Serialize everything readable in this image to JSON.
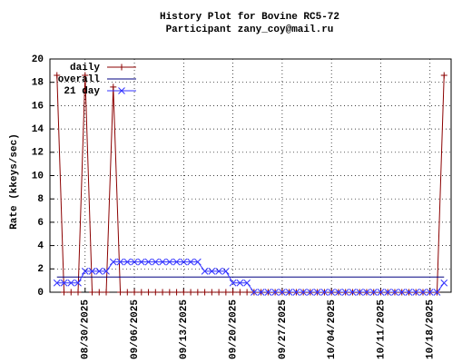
{
  "chart_data": {
    "type": "line",
    "title": "History Plot for Bovine RC5-72",
    "subtitle": "Participant zany_coy@mail.ru",
    "y_label": "Rate (kkeys/sec)",
    "x": [
      "08/26/2025",
      "08/27/2025",
      "08/28/2025",
      "08/29/2025",
      "08/30/2025",
      "08/31/2025",
      "09/01/2025",
      "09/02/2025",
      "09/03/2025",
      "09/04/2025",
      "09/05/2025",
      "09/06/2025",
      "09/07/2025",
      "09/08/2025",
      "09/09/2025",
      "09/10/2025",
      "09/11/2025",
      "09/12/2025",
      "09/13/2025",
      "09/14/2025",
      "09/15/2025",
      "09/16/2025",
      "09/17/2025",
      "09/18/2025",
      "09/19/2025",
      "09/20/2025",
      "09/21/2025",
      "09/22/2025",
      "09/23/2025",
      "09/24/2025",
      "09/25/2025",
      "09/26/2025",
      "09/27/2025",
      "09/28/2025",
      "09/29/2025",
      "09/30/2025",
      "10/01/2025",
      "10/02/2025",
      "10/03/2025",
      "10/04/2025",
      "10/05/2025",
      "10/06/2025",
      "10/07/2025",
      "10/08/2025",
      "10/09/2025",
      "10/10/2025",
      "10/11/2025",
      "10/12/2025",
      "10/13/2025",
      "10/14/2025",
      "10/15/2025",
      "10/16/2025",
      "10/17/2025",
      "10/18/2025",
      "10/19/2025",
      "10/20/2025"
    ],
    "series": [
      {
        "name": "daily",
        "color": "#8b0000",
        "marker": "+",
        "values": [
          18.6,
          0,
          0,
          0,
          18.6,
          0,
          0,
          0,
          17.6,
          0,
          0,
          0,
          0,
          0,
          0,
          0,
          0,
          0,
          0,
          0,
          0,
          0,
          0,
          0,
          0,
          0,
          0,
          0,
          0,
          0,
          0,
          0,
          0,
          0,
          0,
          0,
          0,
          0,
          0,
          0,
          0,
          0,
          0,
          0,
          0,
          0,
          0,
          0,
          0,
          0,
          0,
          0,
          0,
          0,
          0,
          18.6
        ]
      },
      {
        "name": "overall",
        "color": "#000080",
        "marker": "none",
        "values": [
          1.3,
          1.3,
          1.3,
          1.3,
          1.3,
          1.3,
          1.3,
          1.3,
          1.3,
          1.3,
          1.3,
          1.3,
          1.3,
          1.3,
          1.3,
          1.3,
          1.3,
          1.3,
          1.3,
          1.3,
          1.3,
          1.3,
          1.3,
          1.3,
          1.3,
          1.3,
          1.3,
          1.3,
          1.3,
          1.3,
          1.3,
          1.3,
          1.3,
          1.3,
          1.3,
          1.3,
          1.3,
          1.3,
          1.3,
          1.3,
          1.3,
          1.3,
          1.3,
          1.3,
          1.3,
          1.3,
          1.3,
          1.3,
          1.3,
          1.3,
          1.3,
          1.3,
          1.3,
          1.3,
          1.3,
          1.3
        ]
      },
      {
        "name": "21 day",
        "color": "#3333ff",
        "marker": "x",
        "values": [
          0.8,
          0.8,
          0.8,
          0.8,
          1.8,
          1.8,
          1.8,
          1.8,
          2.6,
          2.6,
          2.6,
          2.6,
          2.6,
          2.6,
          2.6,
          2.6,
          2.6,
          2.6,
          2.6,
          2.6,
          2.6,
          1.8,
          1.8,
          1.8,
          1.8,
          0.8,
          0.8,
          0.8,
          0,
          0,
          0,
          0,
          0,
          0,
          0,
          0,
          0,
          0,
          0,
          0,
          0,
          0,
          0,
          0,
          0,
          0,
          0,
          0,
          0,
          0,
          0,
          0,
          0,
          0,
          0,
          0.8
        ]
      }
    ],
    "xlim": [
      "08/25/2025",
      "10/21/2025"
    ],
    "xticks": [
      "08/30/2025",
      "09/06/2025",
      "09/13/2025",
      "09/20/2025",
      "09/27/2025",
      "10/04/2025",
      "10/11/2025",
      "10/18/2025"
    ],
    "ylim": [
      0,
      20
    ],
    "yticks": [
      0,
      2,
      4,
      6,
      8,
      10,
      12,
      14,
      16,
      18,
      20
    ],
    "grid": true,
    "legend": "top-left"
  }
}
